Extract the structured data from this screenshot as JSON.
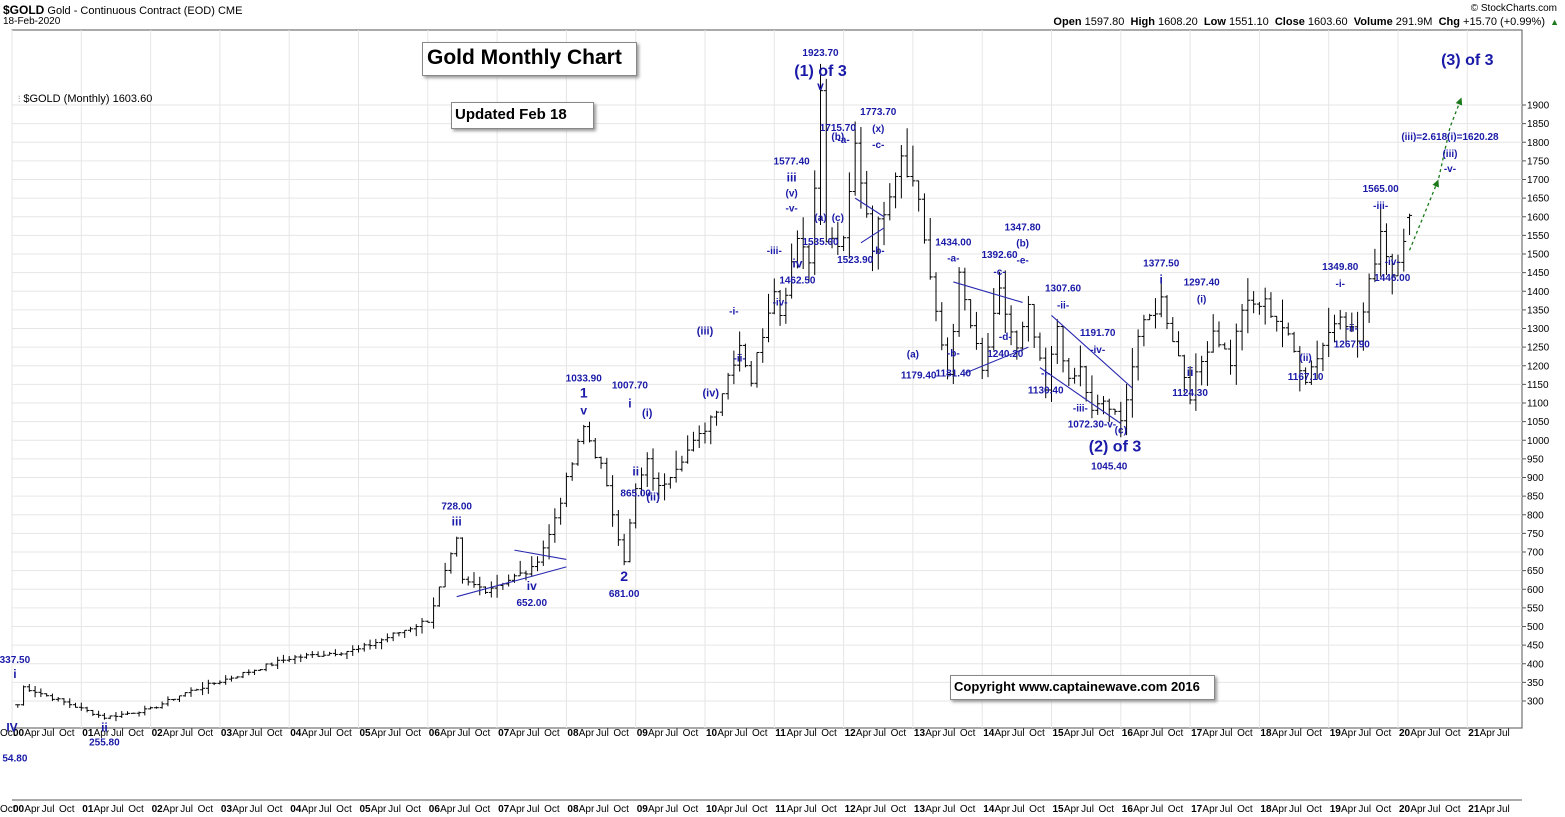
{
  "header": {
    "symbol": "$GOLD",
    "name": "Gold - Continuous Contract (EOD)",
    "exchange": "CME",
    "date": "18-Feb-2020",
    "source": "© StockCharts.com",
    "open_label": "Open",
    "open": "1597.80",
    "high_label": "High",
    "high": "1608.20",
    "low_label": "Low",
    "low": "1551.10",
    "close_label": "Close",
    "close": "1603.60",
    "volume_label": "Volume",
    "volume": "291.9M",
    "chg_label": "Chg",
    "chg": "+15.70 (+0.99%)",
    "chg_icon": "up-triangle-icon"
  },
  "legend": {
    "label": "$GOLD (Monthly) 1603.60"
  },
  "title_box": {
    "text": "Gold Monthly Chart"
  },
  "update_box": {
    "text": "Updated Feb 18"
  },
  "copyright_box": {
    "text": "Copyright   www.captainewave.com 2016"
  },
  "colors": {
    "bars": "#000000",
    "annotation": "#1a1aa8",
    "projection": "#1a7a1a",
    "grid": "#e6e6e6"
  },
  "chart_data": {
    "type": "ohlc",
    "title": "Gold Monthly Chart",
    "period": "Monthly",
    "ylim": [
      250,
      1950
    ],
    "y_ticks": [
      300,
      350,
      400,
      450,
      500,
      550,
      600,
      650,
      700,
      750,
      800,
      850,
      900,
      950,
      1000,
      1050,
      1100,
      1150,
      1200,
      1250,
      1300,
      1350,
      1400,
      1450,
      1500,
      1550,
      1600,
      1650,
      1700,
      1750,
      1800,
      1850,
      1900
    ],
    "x_years": [
      "00",
      "01",
      "02",
      "03",
      "04",
      "05",
      "06",
      "07",
      "08",
      "09",
      "10",
      "11",
      "12",
      "13",
      "14",
      "15",
      "16",
      "17",
      "18",
      "19",
      "20",
      "21"
    ],
    "x_months": [
      "Apr",
      "Jul",
      "Oct"
    ],
    "grid": true,
    "anchors": [
      [
        "2000-01",
        290
      ],
      [
        "2000-02",
        337.5
      ],
      [
        "2001-04",
        255.8
      ],
      [
        "2001-12",
        278
      ],
      [
        "2002-06",
        322
      ],
      [
        "2003-12",
        415
      ],
      [
        "2004-12",
        438
      ],
      [
        "2005-12",
        517
      ],
      [
        "2006-05",
        728
      ],
      [
        "2006-06",
        620
      ],
      [
        "2006-10",
        600
      ],
      [
        "2007-06",
        652
      ],
      [
        "2007-09",
        745
      ],
      [
        "2008-03",
        1033.9
      ],
      [
        "2008-06",
        930
      ],
      [
        "2008-10",
        681
      ],
      [
        "2008-12",
        865
      ],
      [
        "2009-02",
        940
      ],
      [
        "2009-04",
        870
      ],
      [
        "2009-08",
        955
      ],
      [
        "2009-11",
        1007.7
      ],
      [
        "2010-02",
        1090
      ],
      [
        "2010-06",
        1260
      ],
      [
        "2010-08",
        1160
      ],
      [
        "2010-12",
        1420
      ],
      [
        "2011-01",
        1330
      ],
      [
        "2011-04",
        1560
      ],
      [
        "2011-06",
        1480
      ],
      [
        "2011-08",
        1923.7
      ],
      [
        "2011-09",
        1535
      ],
      [
        "2011-12",
        1523.9
      ],
      [
        "2012-02",
        1790
      ],
      [
        "2012-05",
        1527
      ],
      [
        "2012-10",
        1773.7
      ],
      [
        "2013-01",
        1650
      ],
      [
        "2013-04",
        1330
      ],
      [
        "2013-06",
        1179.4
      ],
      [
        "2013-08",
        1434
      ],
      [
        "2013-12",
        1181.4
      ],
      [
        "2014-03",
        1392.6
      ],
      [
        "2014-06",
        1240.2
      ],
      [
        "2014-08",
        1347.8
      ],
      [
        "2014-11",
        1130.4
      ],
      [
        "2015-01",
        1307.6
      ],
      [
        "2015-03",
        1150
      ],
      [
        "2015-05",
        1191.7
      ],
      [
        "2015-07",
        1072.3
      ],
      [
        "2015-09",
        1105
      ],
      [
        "2015-12",
        1045.4
      ],
      [
        "2016-03",
        1280
      ],
      [
        "2016-07",
        1377.5
      ],
      [
        "2016-12",
        1124.3
      ],
      [
        "2017-04",
        1297.4
      ],
      [
        "2017-07",
        1210
      ],
      [
        "2017-09",
        1357
      ],
      [
        "2018-01",
        1366
      ],
      [
        "2018-04",
        1305
      ],
      [
        "2018-08",
        1167.1
      ],
      [
        "2019-02",
        1349.8
      ],
      [
        "2019-05",
        1267.9
      ],
      [
        "2019-09",
        1565
      ],
      [
        "2019-11",
        1446
      ],
      [
        "2020-02",
        1603.6
      ]
    ],
    "last_bar": {
      "open": 1597.8,
      "high": 1608.2,
      "low": 1551.1,
      "close": 1603.6
    },
    "annotations": [
      {
        "t": "2000-00.5",
        "p": 337.5,
        "text": "337.50",
        "size": 10,
        "dy": -24
      },
      {
        "t": "2000-00.5",
        "p": 337.5,
        "text": "i",
        "size": 12,
        "dy": -9
      },
      {
        "t": "2001-04",
        "p": 255.8,
        "text": "ii",
        "size": 12,
        "dy": 14
      },
      {
        "t": "2001-04",
        "p": 255.8,
        "text": "255.80",
        "size": 10,
        "dy": 28
      },
      {
        "t": "2000-00",
        "p": 255.8,
        "text": "IV",
        "size": 12,
        "dy": 14
      },
      {
        "t": "2000-00.5",
        "p": 255.8,
        "text": "54.80",
        "size": 10,
        "dy": 44
      },
      {
        "t": "2006-05",
        "p": 728,
        "text": "728.00",
        "size": 10,
        "dy": -32
      },
      {
        "t": "2006-05",
        "p": 728,
        "text": "iii",
        "size": 12,
        "dy": -16
      },
      {
        "t": "2007-06",
        "p": 652,
        "text": "iv",
        "size": 12,
        "dy": 20
      },
      {
        "t": "2007-06",
        "p": 652,
        "text": "652.00",
        "size": 10,
        "dy": 36
      },
      {
        "t": "2008-03",
        "p": 1033.9,
        "text": "1033.90",
        "size": 10,
        "dy": -46
      },
      {
        "t": "2008-03",
        "p": 1033.9,
        "text": "1",
        "size": 14,
        "dy": -30
      },
      {
        "t": "2008-03",
        "p": 1033.9,
        "text": "v",
        "size": 12,
        "dy": -13
      },
      {
        "t": "2008-10",
        "p": 681,
        "text": "2",
        "size": 14,
        "dy": 22
      },
      {
        "t": "2008-10",
        "p": 681,
        "text": "681.00",
        "size": 10,
        "dy": 38
      },
      {
        "t": "2008-12",
        "p": 865,
        "text": "ii",
        "size": 12,
        "dy": -15
      },
      {
        "t": "2008-12",
        "p": 865,
        "text": "865.00",
        "size": 10,
        "dy": 6
      },
      {
        "t": "2008-11",
        "p": 1007.7,
        "text": "1007.70",
        "size": 10,
        "dy": -49
      },
      {
        "t": "2008-11",
        "p": 1007.7,
        "text": "i",
        "size": 12,
        "dy": -30
      },
      {
        "t": "2009-02",
        "p": 940,
        "text": "(i)",
        "size": 11,
        "dy": -46
      },
      {
        "t": "2009-03",
        "p": 870,
        "text": "(ii)",
        "size": 11,
        "dy": 12
      },
      {
        "t": "2010-00",
        "p": 1260,
        "text": "(iii)",
        "size": 11,
        "dy": -9
      },
      {
        "t": "2010-01",
        "p": 1090,
        "text": "(iv)",
        "size": 11,
        "dy": -10
      },
      {
        "t": "2010-05",
        "p": 1260,
        "text": "-i-",
        "size": 10,
        "dy": -29
      },
      {
        "t": "2010-06",
        "p": 1160,
        "text": "-ii-",
        "size": 10,
        "dy": -19
      },
      {
        "t": "2010-12",
        "p": 1420,
        "text": "-iii-",
        "size": 10,
        "dy": -30
      },
      {
        "t": "2011-01",
        "p": 1330,
        "text": "-iv-",
        "size": 10,
        "dy": -12
      },
      {
        "t": "2011-03",
        "p": 1560,
        "text": "1577.40",
        "size": 10,
        "dy": -67
      },
      {
        "t": "2011-03",
        "p": 1560,
        "text": "iii",
        "size": 12,
        "dy": -50
      },
      {
        "t": "2011-03",
        "p": 1560,
        "text": "(v)",
        "size": 10,
        "dy": -35
      },
      {
        "t": "2011-03",
        "p": 1560,
        "text": "-v-",
        "size": 10,
        "dy": -20
      },
      {
        "t": "2011-04",
        "p": 1480,
        "text": "iv",
        "size": 12,
        "dy": 6
      },
      {
        "t": "2011-04",
        "p": 1480,
        "text": "1462.50",
        "size": 10,
        "dy": 22
      },
      {
        "t": "2011-08",
        "p": 1923.7,
        "text": "1923.70",
        "size": 10,
        "dy": -40
      },
      {
        "t": "2011-08",
        "p": 1923.7,
        "text": "(1) of 3",
        "size": 16,
        "dy": -20
      },
      {
        "t": "2011-08",
        "p": 1923.7,
        "text": "v",
        "size": 12,
        "dy": -6
      },
      {
        "t": "2011-08",
        "p": 1535,
        "text": "(a)",
        "size": 10,
        "dy": -20
      },
      {
        "t": "2011-08",
        "p": 1535,
        "text": "1535.00",
        "size": 10,
        "dy": 4
      },
      {
        "t": "2011-11",
        "p": 1790,
        "text": "1715.70",
        "size": 10,
        "dy": -15
      },
      {
        "t": "2011-11",
        "p": 1790,
        "text": "(b)",
        "size": 10,
        "dy": -6
      },
      {
        "t": "2012-00",
        "p": 1790,
        "text": "-a-",
        "size": 10,
        "dy": -3
      },
      {
        "t": "2011-11",
        "p": 1535,
        "text": "(c)",
        "size": 10,
        "dy": -20
      },
      {
        "t": "2012-02",
        "p": 1523.9,
        "text": "1523.90",
        "size": 10,
        "dy": 18
      },
      {
        "t": "2012-06",
        "p": 1773.7,
        "text": "1773.70",
        "size": 10,
        "dy": -37
      },
      {
        "t": "2012-06",
        "p": 1773.7,
        "text": "(x)",
        "size": 10,
        "dy": -20
      },
      {
        "t": "2012-06",
        "p": 1773.7,
        "text": "-c-",
        "size": 10,
        "dy": -4
      },
      {
        "t": "2012-06",
        "p": 1527,
        "text": "-b-",
        "size": 10,
        "dy": 10
      },
      {
        "t": "2013-07",
        "p": 1434,
        "text": "1434.00",
        "size": 10,
        "dy": -33
      },
      {
        "t": "2013-07",
        "p": 1434,
        "text": "-a-",
        "size": 10,
        "dy": -17
      },
      {
        "t": "2013-00",
        "p": 1179.4,
        "text": "(a)",
        "size": 10,
        "dy": -16
      },
      {
        "t": "2013-01",
        "p": 1179.4,
        "text": "1179.40",
        "size": 10,
        "dy": 5
      },
      {
        "t": "2013-07",
        "p": 1181.4,
        "text": "-b-",
        "size": 10,
        "dy": -16
      },
      {
        "t": "2013-07",
        "p": 1181.4,
        "text": "1181.40",
        "size": 10,
        "dy": 4
      },
      {
        "t": "2014-03",
        "p": 1392.6,
        "text": "1392.60",
        "size": 10,
        "dy": -36
      },
      {
        "t": "2014-03",
        "p": 1392.6,
        "text": "-c-",
        "size": 10,
        "dy": -19
      },
      {
        "t": "2014-04",
        "p": 1240.2,
        "text": "-d-",
        "size": 10,
        "dy": -11
      },
      {
        "t": "2014-04",
        "p": 1240.2,
        "text": "1240.20",
        "size": 10,
        "dy": 6
      },
      {
        "t": "2014-07",
        "p": 1347.8,
        "text": "1347.80",
        "size": 10,
        "dy": -80
      },
      {
        "t": "2014-07",
        "p": 1347.8,
        "text": "(b)",
        "size": 10,
        "dy": -64
      },
      {
        "t": "2014-07",
        "p": 1347.8,
        "text": "-e-",
        "size": 10,
        "dy": -47
      },
      {
        "t": "2014-11",
        "p": 1130.4,
        "text": "-i-",
        "size": 10,
        "dy": -15
      },
      {
        "t": "2014-11",
        "p": 1130.4,
        "text": "1130.40",
        "size": 10,
        "dy": 2
      },
      {
        "t": "2015-02",
        "p": 1307.6,
        "text": "1307.60",
        "size": 10,
        "dy": -34
      },
      {
        "t": "2015-02",
        "p": 1307.6,
        "text": "-ii-",
        "size": 10,
        "dy": -17
      },
      {
        "t": "2015-08",
        "p": 1191.7,
        "text": "1191.70",
        "size": 10,
        "dy": -33
      },
      {
        "t": "2015-08",
        "p": 1191.7,
        "text": "-iv-",
        "size": 10,
        "dy": -16
      },
      {
        "t": "2015-05",
        "p": 1072.3,
        "text": "-iii-",
        "size": 10,
        "dy": -2
      },
      {
        "t": "2015-07",
        "p": 1072.3,
        "text": "1072.30-v-",
        "size": 10,
        "dy": 14
      },
      {
        "t": "2015-12",
        "p": 1045.4,
        "text": "(c)",
        "size": 10,
        "dy": 10
      },
      {
        "t": "2015-11",
        "p": 1045.4,
        "text": "(2) of 3",
        "size": 16,
        "dy": 28
      },
      {
        "t": "2015-10",
        "p": 1045.4,
        "text": "1045.40",
        "size": 10,
        "dy": 46
      },
      {
        "t": "2016-07",
        "p": 1377.5,
        "text": "1377.50",
        "size": 10,
        "dy": -33
      },
      {
        "t": "2016-07",
        "p": 1377.5,
        "text": "i",
        "size": 12,
        "dy": -16
      },
      {
        "t": "2016-12",
        "p": 1124.3,
        "text": "ii",
        "size": 12,
        "dy": -18
      },
      {
        "t": "2016-12",
        "p": 1124.3,
        "text": "1124.30",
        "size": 10,
        "dy": 2
      },
      {
        "t": "2017-02",
        "p": 1297.4,
        "text": "1297.40",
        "size": 10,
        "dy": -44
      },
      {
        "t": "2017-02",
        "p": 1297.4,
        "text": "(i)",
        "size": 10,
        "dy": -27
      },
      {
        "t": "2018-08",
        "p": 1167.1,
        "text": "(ii)",
        "size": 10,
        "dy": -17
      },
      {
        "t": "2018-08",
        "p": 1167.1,
        "text": "1167.10",
        "size": 10,
        "dy": 2
      },
      {
        "t": "2019-02",
        "p": 1349.8,
        "text": "1349.80",
        "size": 10,
        "dy": -40
      },
      {
        "t": "2019-02",
        "p": 1349.8,
        "text": "-i-",
        "size": 10,
        "dy": -23
      },
      {
        "t": "2019-04",
        "p": 1267.9,
        "text": "-ii-",
        "size": 10,
        "dy": -9
      },
      {
        "t": "2019-04",
        "p": 1267.9,
        "text": "1267.90",
        "size": 10,
        "dy": 7
      },
      {
        "t": "2019-09",
        "p": 1565,
        "text": "1565.00",
        "size": 10,
        "dy": -38
      },
      {
        "t": "2019-09",
        "p": 1565,
        "text": "-iii-",
        "size": 10,
        "dy": -21
      },
      {
        "t": "2019-11",
        "p": 1446,
        "text": "-iv-",
        "size": 10,
        "dy": -9
      },
      {
        "t": "2019-11",
        "p": 1446,
        "text": "1446.00",
        "size": 10,
        "dy": 7
      },
      {
        "t": "2020-09",
        "p": 1620.28,
        "text": "(iii)=2.618(i)=1620.28",
        "size": 10,
        "dy": -69
      },
      {
        "t": "2020-09",
        "p": 1620.28,
        "text": "(iii)",
        "size": 10,
        "dy": -52
      },
      {
        "t": "2020-09",
        "p": 1620.28,
        "text": "-v-",
        "size": 10,
        "dy": -37
      },
      {
        "t": "2021-00",
        "p": 1900,
        "text": "(3) of 3",
        "size": 16,
        "dy": -40
      }
    ],
    "trendlines": [
      [
        [
          "2006-05",
          580
        ],
        [
          "2008-00",
          660
        ]
      ],
      [
        [
          "2007-03",
          705
        ],
        [
          "2008-00",
          680
        ]
      ],
      [
        [
          "2012-02",
          1650
        ],
        [
          "2012-07",
          1600
        ]
      ],
      [
        [
          "2012-03",
          1530
        ],
        [
          "2012-07",
          1570
        ]
      ],
      [
        [
          "2013-07",
          1425
        ],
        [
          "2014-07",
          1370
        ]
      ],
      [
        [
          "2013-09",
          1180
        ],
        [
          "2014-08",
          1250
        ]
      ],
      [
        [
          "2014-10",
          1195
        ],
        [
          "2015-12",
          1045
        ]
      ],
      [
        [
          "2014-12",
          1335
        ],
        [
          "2016-02",
          1140
        ]
      ]
    ],
    "projection": [
      [
        "2020-02",
        1510
      ],
      [
        "2020-07",
        1700
      ],
      [
        "2020-09",
        1840
      ],
      [
        "2020-11",
        1920
      ]
    ]
  }
}
